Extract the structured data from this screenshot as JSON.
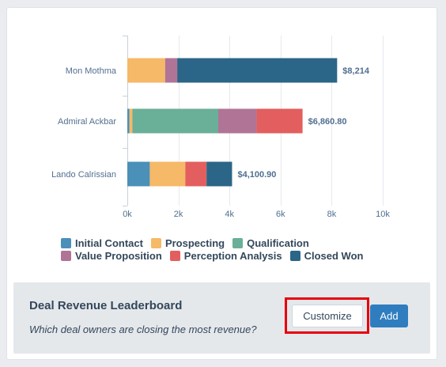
{
  "chart_data": {
    "type": "bar",
    "orientation": "horizontal",
    "stacked": true,
    "categories": [
      "Mon Mothma",
      "Admiral Ackbar",
      "Lando Calrissian"
    ],
    "series": [
      {
        "name": "Initial Contact",
        "color": "#4a90b8",
        "values": [
          0,
          80,
          880
        ]
      },
      {
        "name": "Prospecting",
        "color": "#f5b968",
        "values": [
          1480,
          120,
          1390
        ]
      },
      {
        "name": "Qualification",
        "color": "#6aaf98",
        "values": [
          0,
          3360,
          0
        ]
      },
      {
        "name": "Value Proposition",
        "color": "#b07496",
        "values": [
          474,
          1500,
          0
        ]
      },
      {
        "name": "Perception Analysis",
        "color": "#e35e5e",
        "values": [
          0,
          1800.8,
          830.9
        ]
      },
      {
        "name": "Closed Won",
        "color": "#2b6587",
        "values": [
          6260,
          0,
          1000
        ]
      }
    ],
    "totals": [
      "$8,214",
      "$6,860.80",
      "$4,100.90"
    ],
    "xlim": [
      0,
      10000
    ],
    "xticks": [
      0,
      2000,
      4000,
      6000,
      8000,
      10000
    ],
    "xtick_labels": [
      "0k",
      "2k",
      "4k",
      "6k",
      "8k",
      "10k"
    ],
    "grid": true,
    "legend_position": "bottom"
  },
  "footer": {
    "title": "Deal Revenue Leaderboard",
    "subtitle": "Which deal owners are closing the most revenue?",
    "customize_label": "Customize",
    "add_label": "Add"
  }
}
